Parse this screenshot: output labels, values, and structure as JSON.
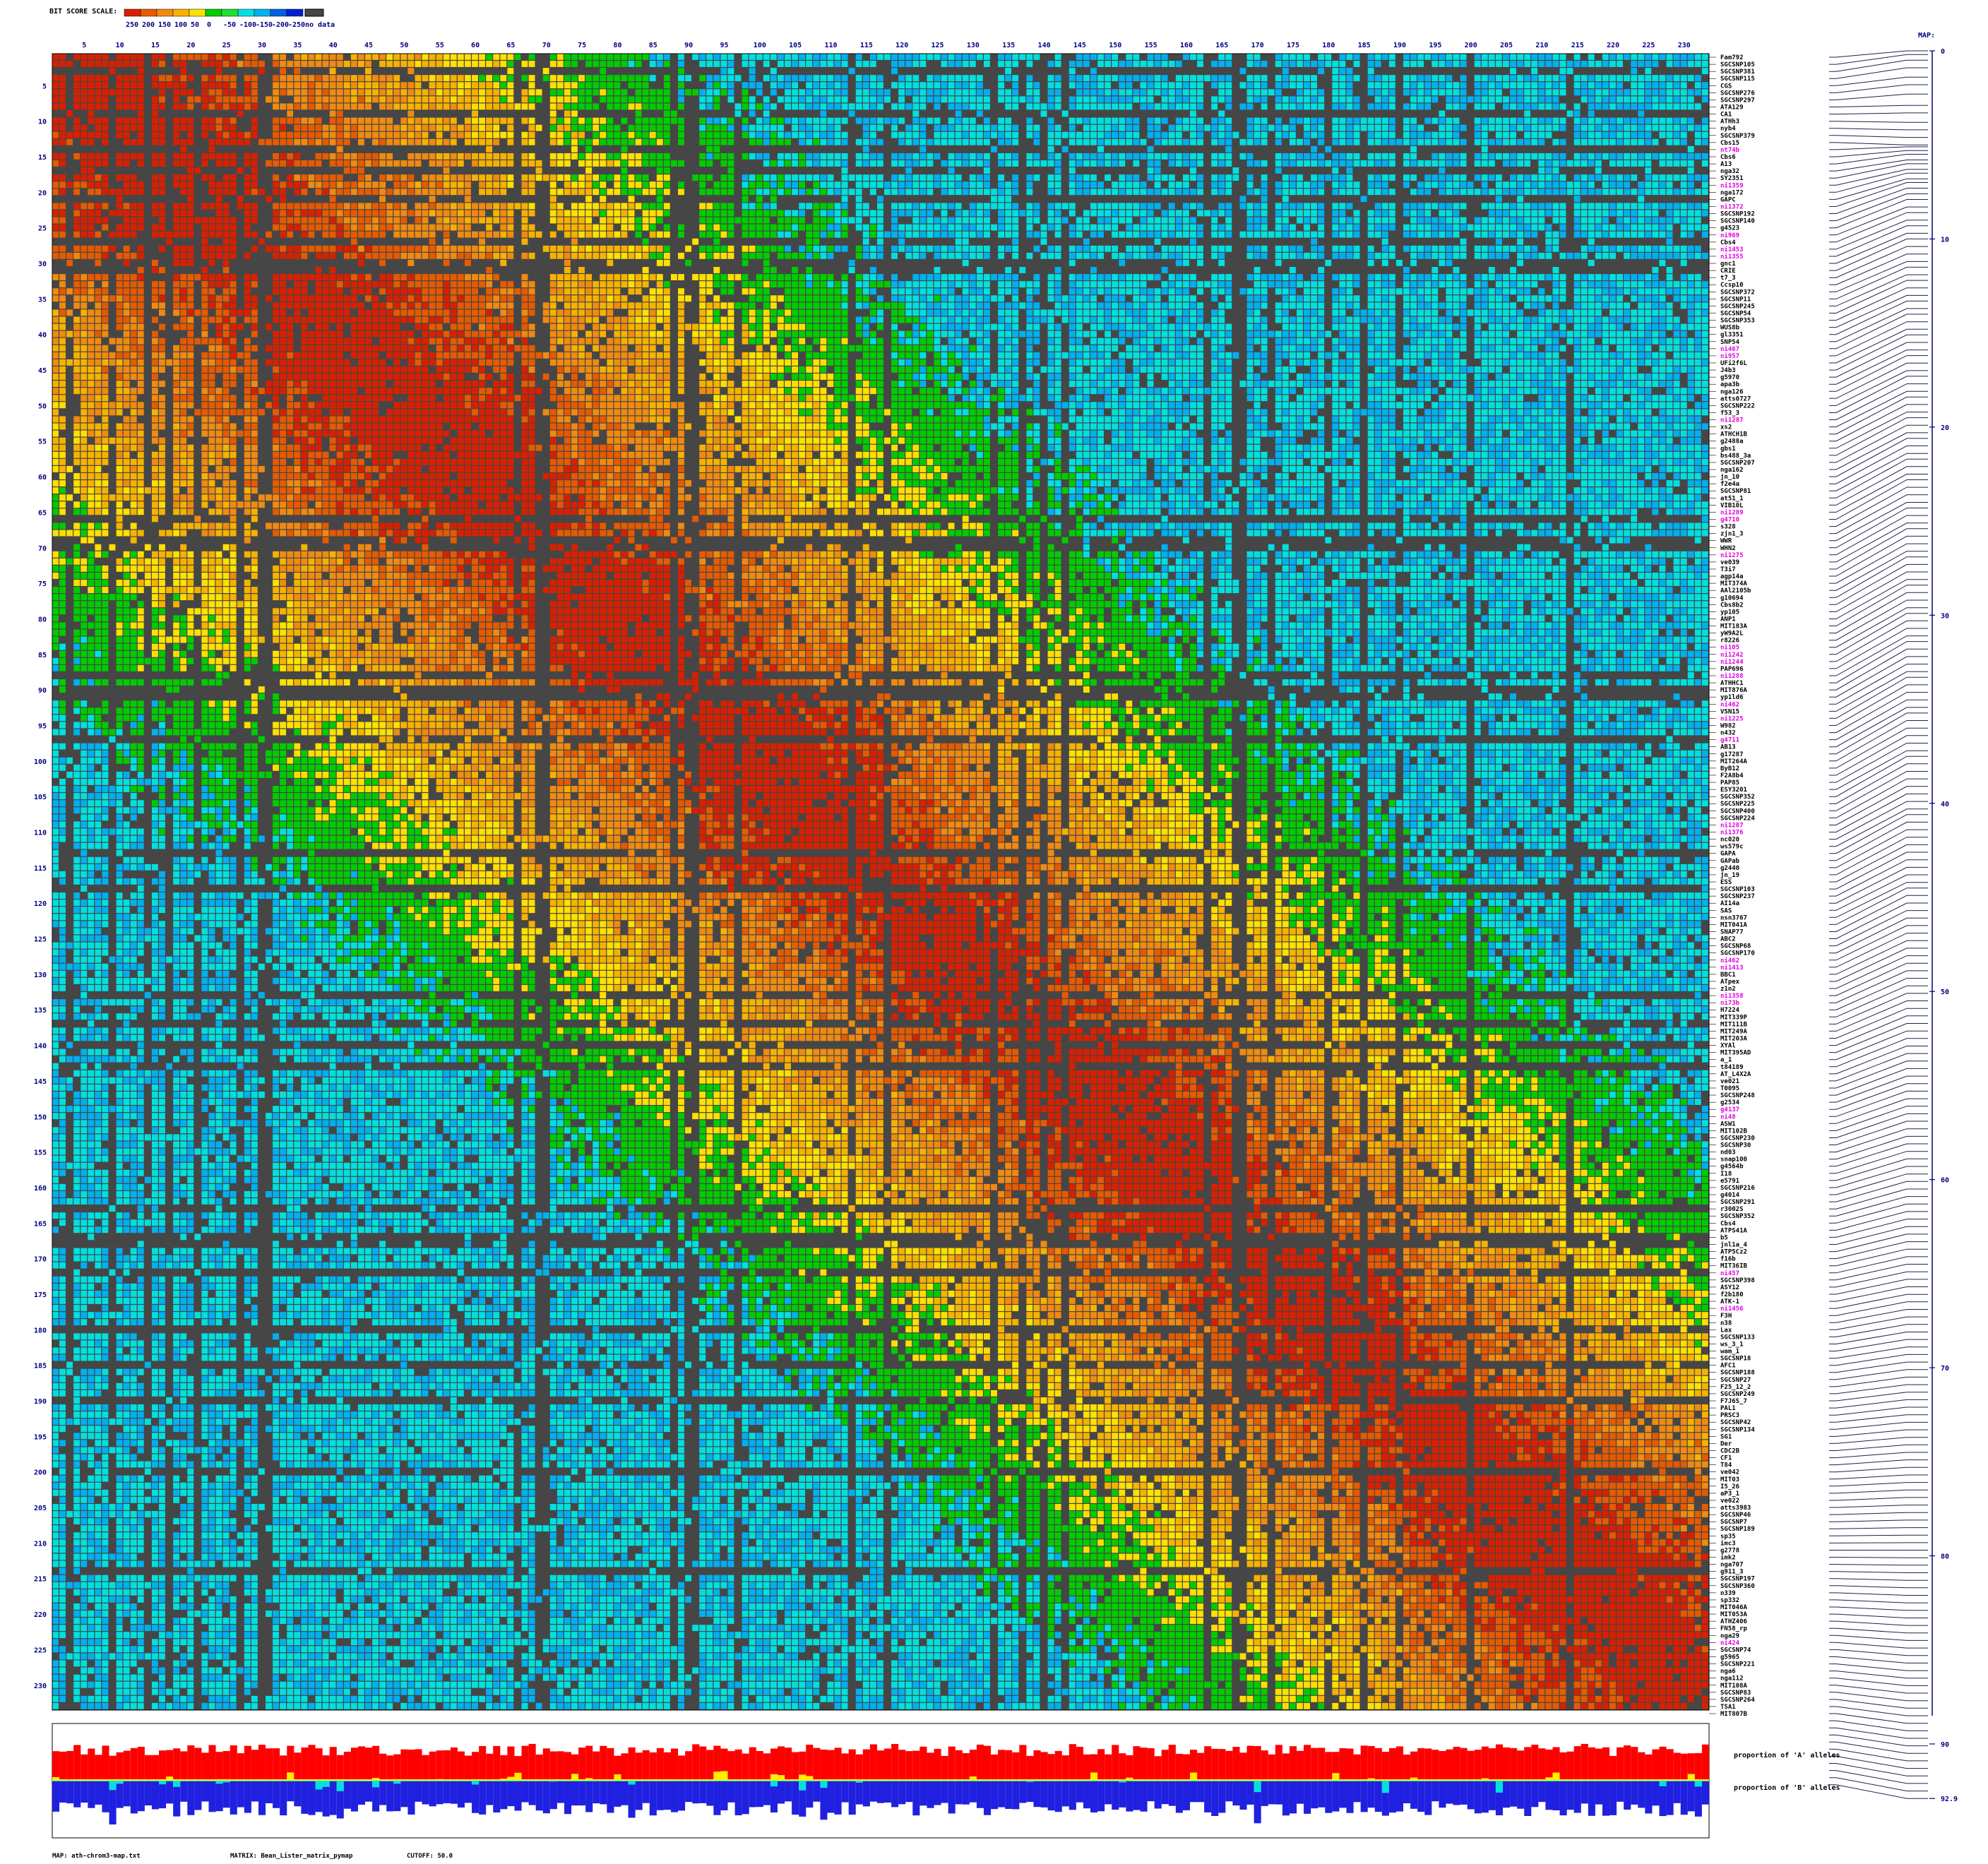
{
  "scale": {
    "title": "BIT SCORE SCALE:",
    "values": [
      "250",
      "200",
      "150",
      "100",
      "50",
      "0",
      "-50",
      "-100",
      "-150",
      "-200",
      "-250"
    ],
    "colors": [
      "#d82000",
      "#e65a00",
      "#f08a10",
      "#f7b200",
      "#ffe000",
      "#00cc00",
      "#22dd33",
      "#00e0e0",
      "#00b0f0",
      "#0060e0",
      "#0020d0"
    ],
    "nodata_label": "no data",
    "nodata_color": "#464646"
  },
  "footer": {
    "map": "MAP: ath-chrom3-map.txt",
    "matrix": "MATRIX: Bean_Lister_matrix_pymap",
    "cutoff": "CUTOFF: 50.0"
  },
  "legend": {
    "a_label": "proportion of 'A' alleles",
    "b_label": "proportion of 'B' alleles",
    "a_color": "#ff0000",
    "b_color": "#2020e0",
    "het_color": "#ffee00",
    "het_b_color": "#00e0e0"
  },
  "map_axis": {
    "title": "MAP:",
    "tick_labels": [
      "0",
      "10",
      "20",
      "30",
      "40",
      "50",
      "60",
      "70",
      "80",
      "90",
      "92.9"
    ]
  },
  "chart_data": {
    "type": "heatmap",
    "n_markers": 233,
    "axis_ticks": [
      "5",
      "10",
      "15",
      "20",
      "25",
      "30",
      "35",
      "40",
      "45",
      "50",
      "55",
      "60",
      "65",
      "70",
      "75",
      "80",
      "85",
      "90",
      "95",
      "100",
      "105",
      "110",
      "115",
      "120",
      "125",
      "130",
      "135",
      "140",
      "145",
      "150",
      "155",
      "160",
      "165",
      "170",
      "175",
      "180",
      "185",
      "190",
      "195",
      "200",
      "205",
      "210",
      "215",
      "220",
      "225",
      "230"
    ],
    "map_positions_cM": [
      0,
      0.2,
      0.5,
      0.9,
      1.4,
      1.8,
      2.3,
      2.9,
      3.3,
      3.8,
      4.2,
      4.6,
      5.0,
      5.1,
      5.3,
      5.5,
      5.8,
      6.0,
      6.3,
      6.5,
      6.8,
      7.0,
      7.3,
      7.6,
      7.9,
      8.3,
      8.6,
      9.0,
      9.3,
      9.7,
      10.0,
      10.4,
      10.8,
      11.2,
      11.5,
      11.9,
      12.2,
      12.6,
      13.0,
      13.3,
      13.7,
      14.0,
      14.4,
      14.8,
      15.1,
      15.5,
      15.9,
      16.2,
      16.6,
      17.0,
      17.3,
      17.7,
      18.1,
      18.4,
      18.8,
      19.2,
      19.5,
      19.9,
      20.3,
      20.6,
      21.0,
      21.4,
      21.7,
      22.1,
      22.5,
      22.8,
      23.2,
      23.6,
      24.0,
      24.3,
      24.7,
      25.1,
      25.4,
      25.8,
      26.2,
      26.6,
      26.9,
      27.3,
      27.7,
      28.1,
      28.4,
      28.8,
      29.2,
      29.6,
      29.9,
      30.3,
      30.7,
      31.1,
      31.4,
      31.8,
      32.2,
      32.6,
      33.0,
      33.3,
      33.7,
      34.1,
      34.5,
      34.9,
      35.2,
      35.6,
      36.0,
      36.4,
      36.8,
      37.2,
      37.5,
      37.9,
      38.3,
      38.7,
      39.1,
      39.5,
      39.9,
      40.3,
      40.6,
      41.0,
      41.4,
      41.8,
      42.2,
      42.6,
      43.0,
      43.4,
      43.8,
      44.2,
      44.5,
      44.9,
      45.3,
      45.7,
      46.1,
      46.5,
      46.9,
      47.3,
      47.7,
      48.1,
      48.5,
      48.9,
      49.3,
      49.7,
      50.1,
      50.5,
      50.9,
      51.3,
      51.7,
      52.1,
      52.5,
      52.9,
      53.3,
      53.7,
      54.1,
      54.5,
      54.9,
      55.3,
      55.7,
      56.1,
      56.5,
      56.9,
      57.3,
      57.7,
      58.1,
      58.5,
      58.9,
      59.3,
      59.7,
      60.1,
      60.5,
      60.9,
      61.3,
      61.7,
      62.1,
      62.5,
      62.9,
      63.3,
      63.7,
      64.1,
      64.5,
      64.9,
      65.3,
      65.7,
      66.1,
      66.5,
      66.9,
      67.3,
      67.7,
      68.1,
      68.5,
      68.9,
      69.3,
      69.7,
      70.1,
      70.5,
      70.9,
      71.3,
      71.7,
      72.1,
      72.5,
      72.9,
      73.3,
      73.7,
      74.1,
      74.5,
      74.9,
      75.3,
      75.7,
      76.1,
      76.5,
      76.9,
      77.3,
      77.7,
      78.1,
      78.5,
      78.9,
      79.3,
      79.7,
      80.1,
      80.5,
      80.9,
      81.3,
      81.7,
      82.1,
      82.5,
      82.9,
      83.3,
      83.7,
      84.1,
      84.5,
      84.9,
      85.3,
      85.7,
      86.1,
      86.5,
      86.9,
      87.3,
      87.7,
      88.1,
      88.5,
      88.9,
      89.3,
      89.7,
      90.1,
      90.5,
      90.9,
      91.3,
      91.7,
      92.1,
      92.5,
      92.9
    ],
    "markers": [
      "Fam792",
      "SGCSNP105",
      "SGCSNP381",
      "SGCSNP115",
      "CGS",
      "SGCSNP276",
      "SGCSNP297",
      "ATA129",
      "CA1",
      "ATHh3",
      "nyb4",
      "SGCSNP379",
      "Cbs15",
      "nt74b",
      "Cbs6",
      "A13",
      "nga32",
      "SY2351",
      "ni1359",
      "nga172",
      "GAPC",
      "ni1372",
      "SGCSNP192",
      "SGCSNP140",
      "g4523",
      "ni969",
      "Cbs4",
      "ni1453",
      "ni1355",
      "gnc1",
      "CRIE",
      "t7_3",
      "Ccsp10",
      "SGCSNP372",
      "SGCSNP11",
      "SGCSNP245",
      "SGCSNP54",
      "SGCSNP353",
      "WUS8b",
      "gl3351",
      "SNP54",
      "ni467",
      "ni957",
      "UFi2f6L",
      "J4b3",
      "g5970",
      "apa3b",
      "nga126",
      "atts0727",
      "SGCSNP222",
      "f53_3",
      "ni1287",
      "xs2",
      "ATHCH1B",
      "g2488a",
      "gbs1",
      "bs488_3a",
      "SGCSNP207",
      "nga162",
      "jn_10",
      "f2e4a",
      "SGCSNP81",
      "at51_1",
      "VIB10L",
      "ni1289",
      "g4710",
      "s328",
      "zjn1_3",
      "WWR",
      "WHN2",
      "ni1275",
      "ve039",
      "T3i7",
      "agp14a",
      "MIT374A",
      "AAl2105b",
      "g10694",
      "Cbs8b2",
      "yp105",
      "ANP1",
      "MIT183A",
      "yW9A2L",
      "r8226",
      "ni105",
      "ni1242",
      "ni1244",
      "PAP696",
      "ni1288",
      "ATHHC1",
      "MIT876A",
      "yp1ld6",
      "ni462",
      "VSN15",
      "ni1225",
      "W982",
      "n432",
      "g4711",
      "AB13",
      "g17287",
      "MIT264A",
      "ByB12",
      "F2A8b4",
      "PAP85",
      "ESY3201",
      "SGCSNP352",
      "SGCSNP225",
      "SGCSNP400",
      "SGCSNP224",
      "ni1287",
      "ni1376",
      "nc020",
      "ws579c",
      "GAPA",
      "GAPab",
      "g2440",
      "jn_19",
      "ESS",
      "SGCSNP103",
      "SGCSNP237",
      "AI14a",
      "SAS",
      "nsn3767",
      "MIT041A",
      "SNAP77",
      "ABC2",
      "SGCSNP68",
      "SGCSNP170",
      "ni462",
      "ni1413",
      "BBC1",
      "ATpex",
      "z1n2",
      "ni1358",
      "ni73b",
      "H7224",
      "MIT339P",
      "MIT111B",
      "MIT249A",
      "MIT203A",
      "XYAl",
      "MIT395AD",
      "a_1",
      "t84189",
      "AT_L4X2A",
      "ve021",
      "T0095",
      "SGCSNP248",
      "g2534",
      "g4137",
      "ni48",
      "ASW1",
      "MIT102B",
      "SGCSNP230",
      "SGCSNP30",
      "nd03",
      "snap100",
      "g4564b",
      "I18",
      "e5791",
      "SGCSNP216",
      "g4014",
      "SGCSNP291",
      "r3002S",
      "SGCSNP352",
      "Cbs4",
      "ATPS41A",
      "b5",
      "jnl1a_4",
      "ATP5Cz2",
      "f16b",
      "MIT36IB",
      "ni457",
      "SGCSNP398",
      "ASY12",
      "f2b180",
      "ATK-1",
      "ni1456",
      "F3H",
      "n38",
      "Lax",
      "SGCSNP133",
      "ws_3_1",
      "wam_1",
      "SGCSNP18",
      "AFC1",
      "SGCSNP188",
      "SGCSNP27",
      "F25_12_2",
      "SGCSNP249",
      "F7J6S_7",
      "PAL1",
      "PRSC3",
      "SGCSNP42",
      "SGCSNP134",
      "SG1",
      "Der",
      "CDC2B",
      "CF1",
      "T84",
      "ve042",
      "MIT03",
      "I5_26",
      "aP3_1",
      "ve022",
      "atts3983",
      "SGCSNP46",
      "SGCSNP7",
      "SGCSNP189",
      "sp35",
      "imc3",
      "g2778",
      "imk2",
      "nga707",
      "g911_3",
      "SGCSNP197",
      "SGCSNP360",
      "n339",
      "sp332",
      "MIT046A",
      "MIT053A",
      "ATHZ406",
      "FN58_rp",
      "nga29",
      "ni424",
      "SGCSNP74",
      "g5965",
      "SGCSNP221",
      "nga6",
      "nga112",
      "MIT108A",
      "SGCSNP83",
      "SGCSNP264",
      "TSA1",
      "MIT807B"
    ]
  }
}
